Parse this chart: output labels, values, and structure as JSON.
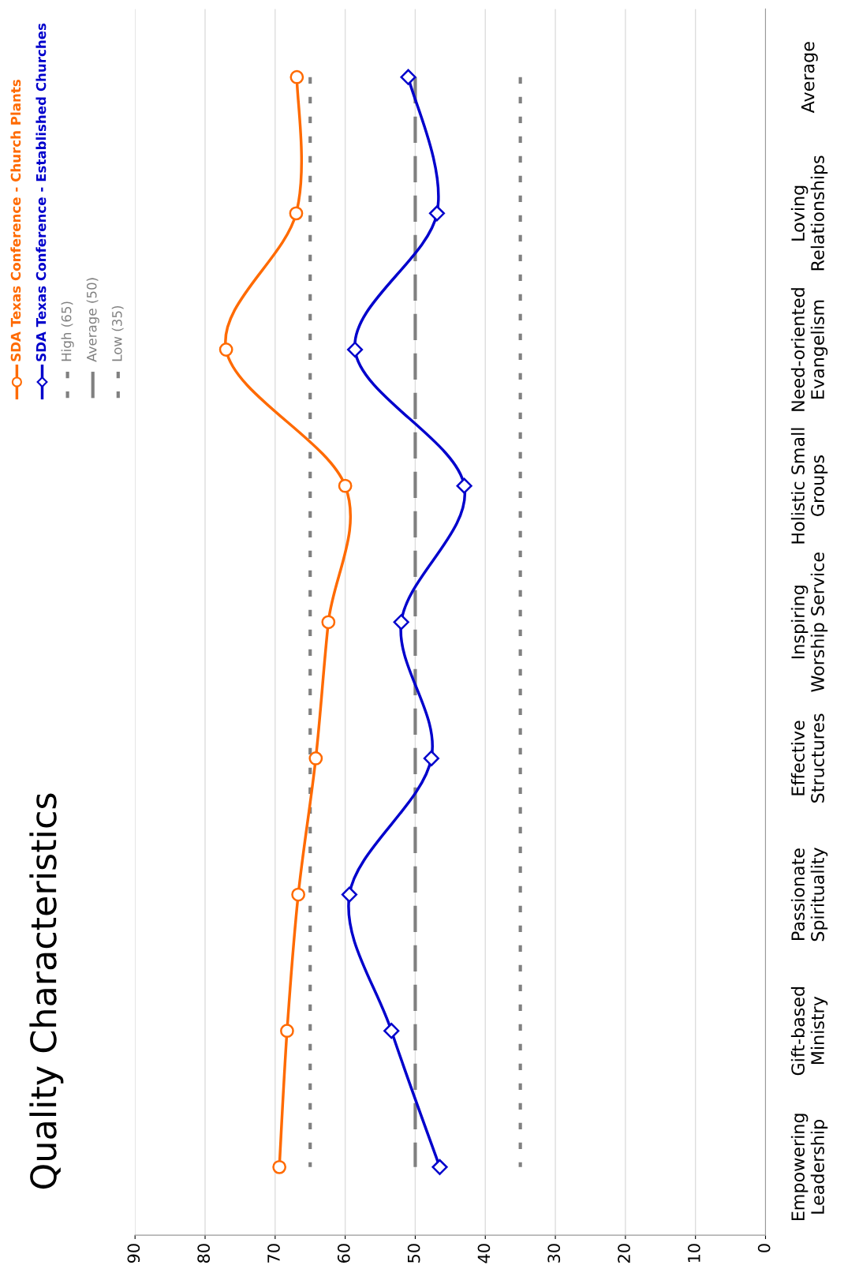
{
  "chart_data": {
    "type": "line",
    "title": "Quality Characteristics",
    "orientation": "horizontal",
    "categories": [
      "Average",
      "Loving\nRelationships",
      "Need-oriented\nEvangelism",
      "Holistic Small\nGroups",
      "Inspiring\nWorship Service",
      "Effective\nStructures",
      "Passionate\nSpirituality",
      "Gift-based\nMinistry",
      "Empowering\nLeadership"
    ],
    "series": [
      {
        "name": "SDA Texas Conference - Church Plants",
        "color": "#ff6a00",
        "marker": "circle",
        "values": [
          66.9,
          67.0,
          77.0,
          60.0,
          62.4,
          64.2,
          66.7,
          68.3,
          69.4
        ]
      },
      {
        "name": "SDA Texas Conference - Established Churches",
        "color": "#0000cc",
        "marker": "diamond",
        "values": [
          51.0,
          46.9,
          58.6,
          43.0,
          52.0,
          47.7,
          59.4,
          53.4,
          46.5
        ]
      }
    ],
    "ref_lines": [
      {
        "axis": "x",
        "value": 65,
        "label": "High (65)",
        "color": "#808080",
        "line_style": "dotted"
      },
      {
        "axis": "x",
        "value": 50,
        "label": "Average (50)",
        "color": "#808080",
        "line_style": "dashed"
      },
      {
        "axis": "x",
        "value": 35,
        "label": "Low (35)",
        "color": "#808080",
        "line_style": "dotted"
      }
    ],
    "xlim": [
      90,
      0
    ],
    "xticks": [
      90,
      80,
      70,
      60,
      50,
      40,
      30,
      20,
      10,
      0
    ],
    "grid": "x",
    "legend": "top left"
  }
}
